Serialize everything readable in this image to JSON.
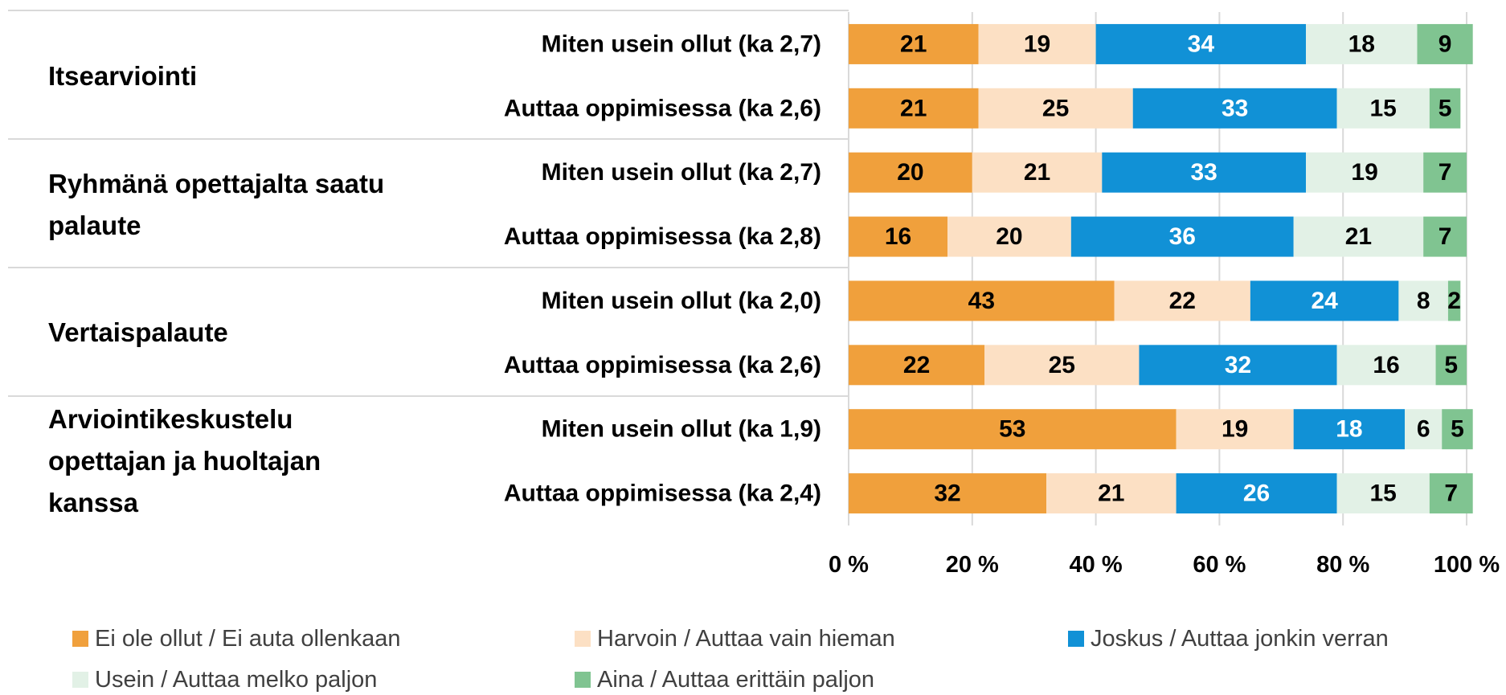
{
  "chart_data": {
    "type": "bar",
    "orientation": "horizontal",
    "stacked": true,
    "groups": [
      "Itsearviointi",
      "Ryhmänä opettajalta saatu palaute",
      "Vertaispalaute",
      "Arviointikeskustelu opettajan ja huoltajan kanssa"
    ],
    "categories": [
      "Miten usein ollut (ka 2,7)",
      "Auttaa oppimisessa (ka 2,6)",
      "Miten usein ollut (ka 2,7)",
      "Auttaa oppimisessa (ka 2,8)",
      "Miten usein ollut (ka 2,0)",
      "Auttaa oppimisessa (ka 2,6)",
      "Miten usein ollut (ka 1,9)",
      "Auttaa oppimisessa (ka 2,4)"
    ],
    "series": [
      {
        "name": "Ei ole ollut / Ei auta ollenkaan",
        "color": "#F0A03C",
        "label_color": "#000000",
        "values": [
          21,
          21,
          20,
          16,
          43,
          22,
          53,
          32
        ]
      },
      {
        "name": "Harvoin / Auttaa vain hieman",
        "color": "#FCE0C4",
        "label_color": "#000000",
        "values": [
          19,
          25,
          21,
          20,
          22,
          25,
          19,
          21
        ]
      },
      {
        "name": "Joskus / Auttaa jonkin verran",
        "color": "#1191D6",
        "label_color": "#FFFFFF",
        "values": [
          34,
          33,
          33,
          36,
          24,
          32,
          18,
          26
        ]
      },
      {
        "name": "Usein / Auttaa melko paljon",
        "color": "#E2F1E6",
        "label_color": "#000000",
        "values": [
          18,
          15,
          19,
          21,
          8,
          16,
          6,
          15
        ]
      },
      {
        "name": "Aina / Auttaa erittäin paljon",
        "color": "#80C491",
        "label_color": "#000000",
        "values": [
          9,
          5,
          7,
          7,
          2,
          5,
          5,
          7
        ]
      }
    ],
    "xlim": [
      0,
      100
    ],
    "xticks": [
      {
        "value": 0,
        "label": "0 %"
      },
      {
        "value": 20,
        "label": "20 %"
      },
      {
        "value": 40,
        "label": "40 %"
      },
      {
        "value": 60,
        "label": "60 %"
      },
      {
        "value": 80,
        "label": "80 %"
      },
      {
        "value": 100,
        "label": "100 %"
      }
    ],
    "grid": true,
    "legend": "bottom"
  }
}
